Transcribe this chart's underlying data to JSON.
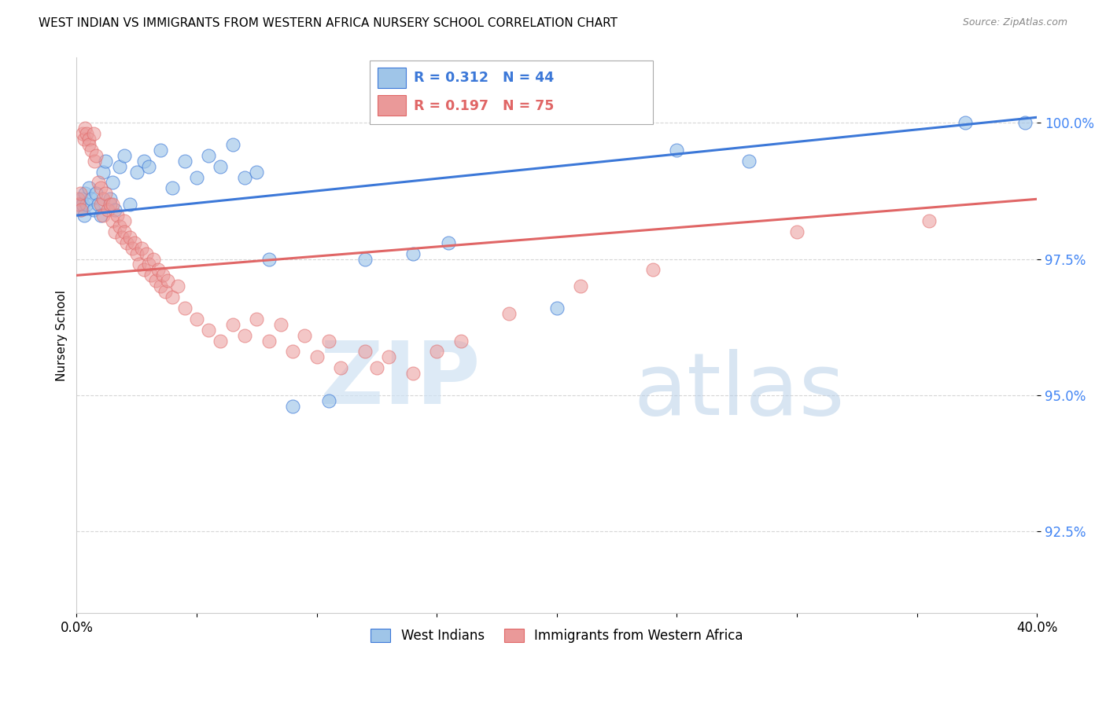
{
  "title": "WEST INDIAN VS IMMIGRANTS FROM WESTERN AFRICA NURSERY SCHOOL CORRELATION CHART",
  "source": "Source: ZipAtlas.com",
  "ylabel": "Nursery School",
  "yticks": [
    92.5,
    95.0,
    97.5,
    100.0
  ],
  "ytick_labels": [
    "92.5%",
    "95.0%",
    "97.5%",
    "100.0%"
  ],
  "xmin": 0.0,
  "xmax": 40.0,
  "ymin": 91.0,
  "ymax": 101.2,
  "blue_scatter_color": "#9fc5e8",
  "blue_edge_color": "#3c78d8",
  "pink_scatter_color": "#ea9999",
  "pink_edge_color": "#e06666",
  "blue_line_color": "#3c78d8",
  "pink_line_color": "#e06666",
  "legend_blue_R": "0.312",
  "legend_blue_N": "44",
  "legend_pink_R": "0.197",
  "legend_pink_N": "75",
  "blue_label": "West Indians",
  "pink_label": "Immigrants from Western Africa",
  "blue_line_y0": 98.3,
  "blue_line_y1": 100.1,
  "pink_line_y0": 97.2,
  "pink_line_y1": 98.6,
  "blue_scatter_x": [
    0.1,
    0.15,
    0.2,
    0.25,
    0.3,
    0.35,
    0.4,
    0.5,
    0.6,
    0.7,
    0.8,
    0.9,
    1.0,
    1.1,
    1.2,
    1.4,
    1.5,
    1.6,
    1.8,
    2.0,
    2.2,
    2.5,
    2.8,
    3.0,
    3.5,
    4.0,
    4.5,
    5.0,
    5.5,
    6.0,
    6.5,
    7.0,
    7.5,
    8.0,
    9.0,
    10.5,
    12.0,
    14.0,
    15.5,
    20.0,
    25.0,
    28.0,
    37.0,
    39.5
  ],
  "blue_scatter_y": [
    98.5,
    98.4,
    98.6,
    98.5,
    98.3,
    98.7,
    98.5,
    98.8,
    98.6,
    98.4,
    98.7,
    98.5,
    98.3,
    99.1,
    99.3,
    98.6,
    98.9,
    98.4,
    99.2,
    99.4,
    98.5,
    99.1,
    99.3,
    99.2,
    99.5,
    98.8,
    99.3,
    99.0,
    99.4,
    99.2,
    99.6,
    99.0,
    99.1,
    97.5,
    94.8,
    94.9,
    97.5,
    97.6,
    97.8,
    96.6,
    99.5,
    99.3,
    100.0,
    100.0
  ],
  "pink_scatter_x": [
    0.05,
    0.1,
    0.15,
    0.2,
    0.25,
    0.3,
    0.35,
    0.4,
    0.5,
    0.5,
    0.6,
    0.7,
    0.75,
    0.8,
    0.9,
    1.0,
    1.0,
    1.1,
    1.1,
    1.2,
    1.3,
    1.4,
    1.5,
    1.5,
    1.6,
    1.7,
    1.8,
    1.9,
    2.0,
    2.0,
    2.1,
    2.2,
    2.3,
    2.4,
    2.5,
    2.6,
    2.7,
    2.8,
    2.9,
    3.0,
    3.1,
    3.2,
    3.3,
    3.4,
    3.5,
    3.6,
    3.7,
    3.8,
    4.0,
    4.2,
    4.5,
    5.0,
    5.5,
    6.0,
    6.5,
    7.0,
    7.5,
    8.0,
    8.5,
    9.0,
    9.5,
    10.0,
    10.5,
    11.0,
    12.0,
    12.5,
    13.0,
    14.0,
    15.0,
    16.0,
    18.0,
    21.0,
    24.0,
    30.0,
    35.5
  ],
  "pink_scatter_y": [
    98.6,
    98.5,
    98.7,
    98.4,
    99.8,
    99.7,
    99.9,
    99.8,
    99.7,
    99.6,
    99.5,
    99.8,
    99.3,
    99.4,
    98.9,
    98.8,
    98.5,
    98.6,
    98.3,
    98.7,
    98.4,
    98.5,
    98.2,
    98.5,
    98.0,
    98.3,
    98.1,
    97.9,
    98.2,
    98.0,
    97.8,
    97.9,
    97.7,
    97.8,
    97.6,
    97.4,
    97.7,
    97.3,
    97.6,
    97.4,
    97.2,
    97.5,
    97.1,
    97.3,
    97.0,
    97.2,
    96.9,
    97.1,
    96.8,
    97.0,
    96.6,
    96.4,
    96.2,
    96.0,
    96.3,
    96.1,
    96.4,
    96.0,
    96.3,
    95.8,
    96.1,
    95.7,
    96.0,
    95.5,
    95.8,
    95.5,
    95.7,
    95.4,
    95.8,
    96.0,
    96.5,
    97.0,
    97.3,
    98.0,
    98.2
  ],
  "grid_color": "#cccccc",
  "spine_color": "#cccccc",
  "ytick_color": "#4285f4",
  "watermark_zip_color": "#cfe2f3",
  "watermark_atlas_color": "#b8d0e8"
}
